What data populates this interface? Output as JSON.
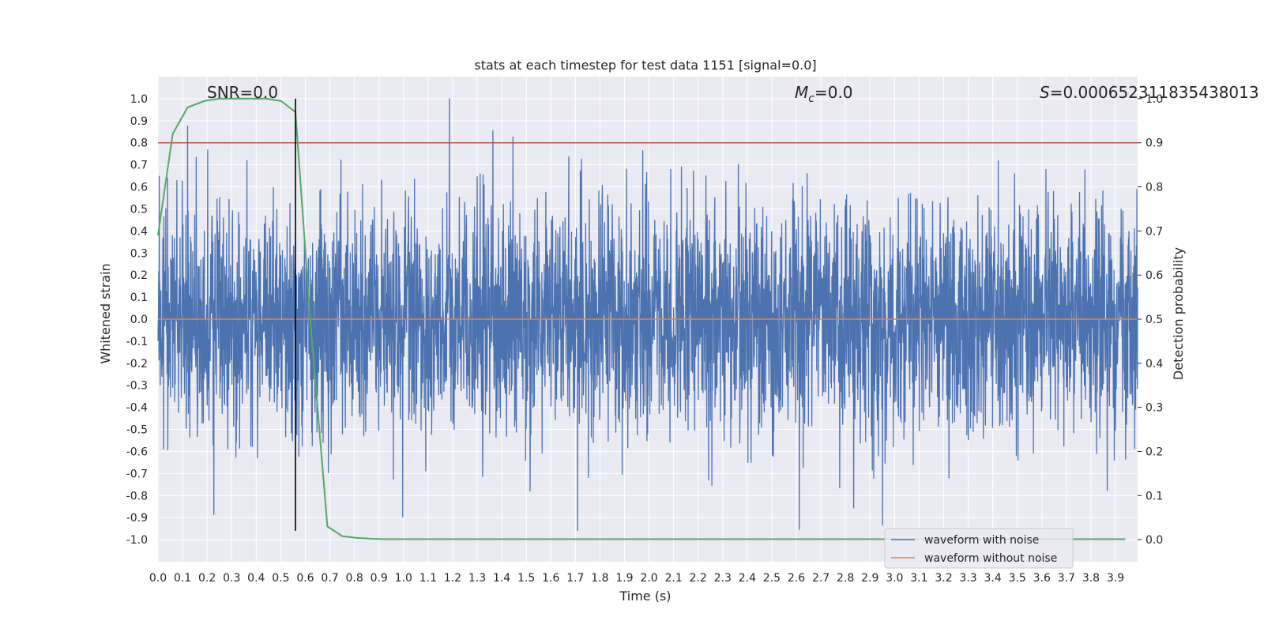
{
  "chart_data": {
    "type": "line",
    "title": "stats at each timestep for test data 1151 [signal=0.0]",
    "xlabel": "Time (s)",
    "ylabel": "Whitened strain",
    "ylabel_right": "Detection probability",
    "xlim": [
      0.0,
      3.99
    ],
    "ylim": [
      -1.1,
      1.1
    ],
    "ylim_right": [
      -0.05,
      1.05
    ],
    "x_ticks": [
      "0.0",
      "0.1",
      "0.2",
      "0.3",
      "0.4",
      "0.5",
      "0.6",
      "0.7",
      "0.8",
      "0.9",
      "1.0",
      "1.1",
      "1.2",
      "1.3",
      "1.4",
      "1.5",
      "1.6",
      "1.7",
      "1.8",
      "1.9",
      "2.0",
      "2.1",
      "2.2",
      "2.3",
      "2.4",
      "2.5",
      "2.6",
      "2.7",
      "2.8",
      "2.9",
      "3.0",
      "3.1",
      "3.2",
      "3.3",
      "3.4",
      "3.5",
      "3.6",
      "3.7",
      "3.8",
      "3.9"
    ],
    "y_ticks": [
      "1.0",
      "0.9",
      "0.8",
      "0.7",
      "0.6",
      "0.5",
      "0.4",
      "0.3",
      "0.2",
      "0.1",
      "0.0",
      "-0.1",
      "-0.2",
      "-0.3",
      "-0.4",
      "-0.5",
      "-0.6",
      "-0.7",
      "-0.8",
      "-0.9",
      "-1.0"
    ],
    "y_ticks_right": [
      "1.0",
      "0.9",
      "0.8",
      "0.7",
      "0.6",
      "0.5",
      "0.4",
      "0.3",
      "0.2",
      "0.1",
      "0.0"
    ],
    "annotations": {
      "snr": "SNR=0.0",
      "mc_symbol": "M",
      "mc_sub": "c",
      "mc_value": "=0.0",
      "s_symbol": "S",
      "s_value": "=0.000652311835438013"
    },
    "series": [
      {
        "name": "waveform with noise",
        "color": "#4c72b0",
        "description": "Whitened noise, roughly within [-0.96, 1.0], 4 seconds of data",
        "amplitude_range": [
          -0.96,
          1.0
        ]
      },
      {
        "name": "waveform without noise",
        "color": "#dd8452",
        "values_constant": 0.0
      },
      {
        "name": "detection probability",
        "axis": "right",
        "color": "#55a868",
        "x": [
          0.0,
          0.06,
          0.12,
          0.19,
          0.25,
          0.31,
          0.37,
          0.44,
          0.5,
          0.56,
          0.62,
          0.69,
          0.75,
          0.81,
          0.87,
          0.94,
          1.0,
          1.5,
          2.0,
          2.5,
          3.0,
          3.5,
          3.94
        ],
        "values": [
          0.69,
          0.92,
          0.98,
          0.995,
          1.0,
          1.0,
          1.0,
          1.0,
          0.995,
          0.97,
          0.5,
          0.03,
          0.008,
          0.004,
          0.002,
          0.001,
          0.001,
          0.001,
          0.001,
          0.001,
          0.001,
          0.001,
          0.001
        ]
      }
    ],
    "reference_lines": [
      {
        "name": "threshold",
        "axis": "right",
        "orientation": "horizontal",
        "value": 0.9,
        "color": "#c44e52"
      },
      {
        "name": "marker",
        "orientation": "vertical",
        "x": 0.56,
        "color": "#000000",
        "y_range": [
          -0.96,
          1.0
        ]
      }
    ],
    "legend": {
      "placement": "bottom-right",
      "entries": [
        {
          "label": "waveform with noise",
          "color": "#4c72b0"
        },
        {
          "label": "waveform without noise",
          "color": "#dd8452"
        }
      ]
    },
    "grid": true,
    "style": {
      "axes_bg": "#eaeaf2",
      "grid_color": "#ffffff"
    }
  }
}
